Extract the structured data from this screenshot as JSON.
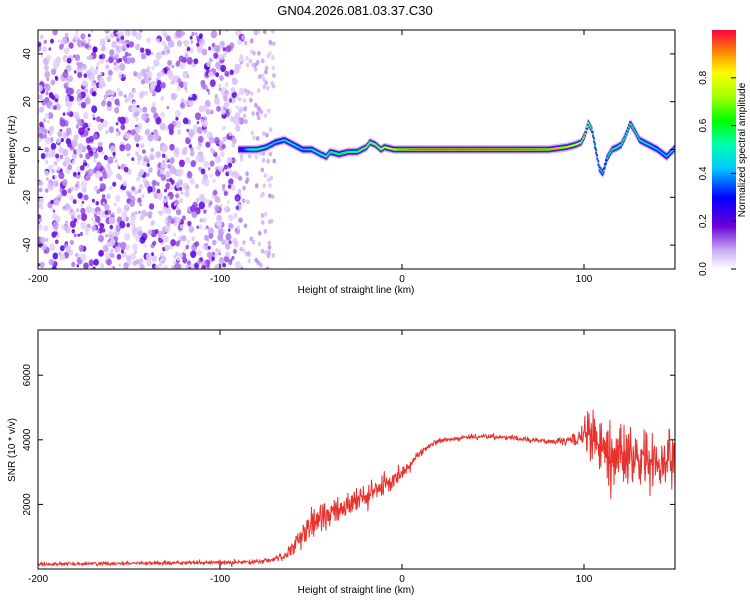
{
  "figure_title": "GN04.2026.081.03.37.C30",
  "chart_data": [
    {
      "type": "heatmap",
      "panel": "spectrogram",
      "xlabel": "Height of straight line (km)",
      "ylabel": "Frequency (Hz)",
      "xlim": [
        -200,
        150
      ],
      "ylim": [
        -50,
        50
      ],
      "xticks": [
        -200,
        -100,
        0,
        100
      ],
      "yticks": [
        -40,
        -20,
        0,
        20,
        40
      ],
      "colorbar": {
        "label": "Normalized spectral amplitude",
        "range": [
          0,
          1
        ],
        "ticks": [
          0.0,
          0.2,
          0.4,
          0.6,
          0.8
        ]
      },
      "noise_region_x": [
        -200,
        -88
      ],
      "sparse_region_x": [
        -88,
        -70
      ],
      "signal_track": {
        "x": [
          -90,
          -85,
          -80,
          -75,
          -70,
          -65,
          -60,
          -55,
          -50,
          -45,
          -42,
          -40,
          -35,
          -30,
          -25,
          -20,
          -18,
          -15,
          -12,
          -10,
          -5,
          0,
          10,
          30,
          60,
          80,
          90,
          95,
          98,
          100,
          102,
          104,
          106,
          108,
          110,
          112,
          115,
          118,
          120,
          122,
          125,
          128,
          130,
          135,
          140,
          145,
          150
        ],
        "y": [
          0,
          0,
          0,
          1,
          3,
          4,
          2,
          0,
          0,
          -2,
          -3,
          -1,
          -2,
          -1,
          -1,
          1,
          3,
          2,
          0,
          1,
          0,
          0,
          0,
          0,
          0,
          0,
          1,
          2,
          3,
          6,
          11,
          8,
          0,
          -8,
          -10,
          -4,
          0,
          1,
          2,
          5,
          11,
          7,
          4,
          2,
          0,
          -3,
          1
        ],
        "amplitude": [
          0.2,
          0.5,
          0.6,
          0.5,
          0.45,
          0.5,
          0.5,
          0.45,
          0.5,
          0.55,
          0.55,
          0.6,
          0.6,
          0.65,
          0.65,
          0.7,
          0.7,
          0.7,
          0.75,
          0.8,
          0.85,
          0.9,
          0.95,
          0.95,
          0.95,
          0.9,
          0.85,
          0.85,
          0.7,
          0.7,
          0.75,
          0.6,
          0.55,
          0.5,
          0.45,
          0.5,
          0.55,
          0.55,
          0.55,
          0.6,
          0.6,
          0.55,
          0.5,
          0.5,
          0.45,
          0.45,
          0.5
        ]
      }
    },
    {
      "type": "line",
      "panel": "snr",
      "xlabel": "Height of straight line (km)",
      "ylabel": "SNR (10 * v/v)",
      "xlim": [
        -200,
        150
      ],
      "ylim": [
        0,
        7400
      ],
      "xticks": [
        -200,
        -100,
        0,
        100
      ],
      "yticks": [
        2000,
        4000,
        6000
      ],
      "color": "#e8322e",
      "series": [
        {
          "name": "SNR",
          "envelope": {
            "x": [
              -200,
              -150,
              -100,
              -80,
              -70,
              -62,
              -55,
              -48,
              -42,
              -35,
              -28,
              -20,
              -12,
              -5,
              0,
              5,
              10,
              15,
              20,
              25,
              30,
              40,
              50,
              60,
              70,
              80,
              90,
              98,
              103,
              108,
              115,
              120,
              125,
              130,
              135,
              140,
              145,
              150
            ],
            "mean": [
              150,
              180,
              200,
              220,
              300,
              500,
              1000,
              1400,
              1700,
              1900,
              2000,
              2200,
              2500,
              2700,
              3000,
              3300,
              3600,
              3800,
              3950,
              4000,
              4050,
              4100,
              4100,
              4050,
              4000,
              3950,
              3950,
              4050,
              4300,
              3700,
              3500,
              3600,
              3400,
              3500,
              3300,
              3400,
              3500,
              3500
            ],
            "spread": [
              80,
              80,
              90,
              100,
              150,
              300,
              600,
              800,
              800,
              700,
              650,
              600,
              500,
              450,
              350,
              250,
              200,
              150,
              130,
              120,
              120,
              120,
              120,
              120,
              120,
              130,
              150,
              500,
              1300,
              1400,
              1500,
              1400,
              1300,
              1300,
              1200,
              1200,
              1200,
              1200
            ]
          }
        }
      ]
    }
  ]
}
